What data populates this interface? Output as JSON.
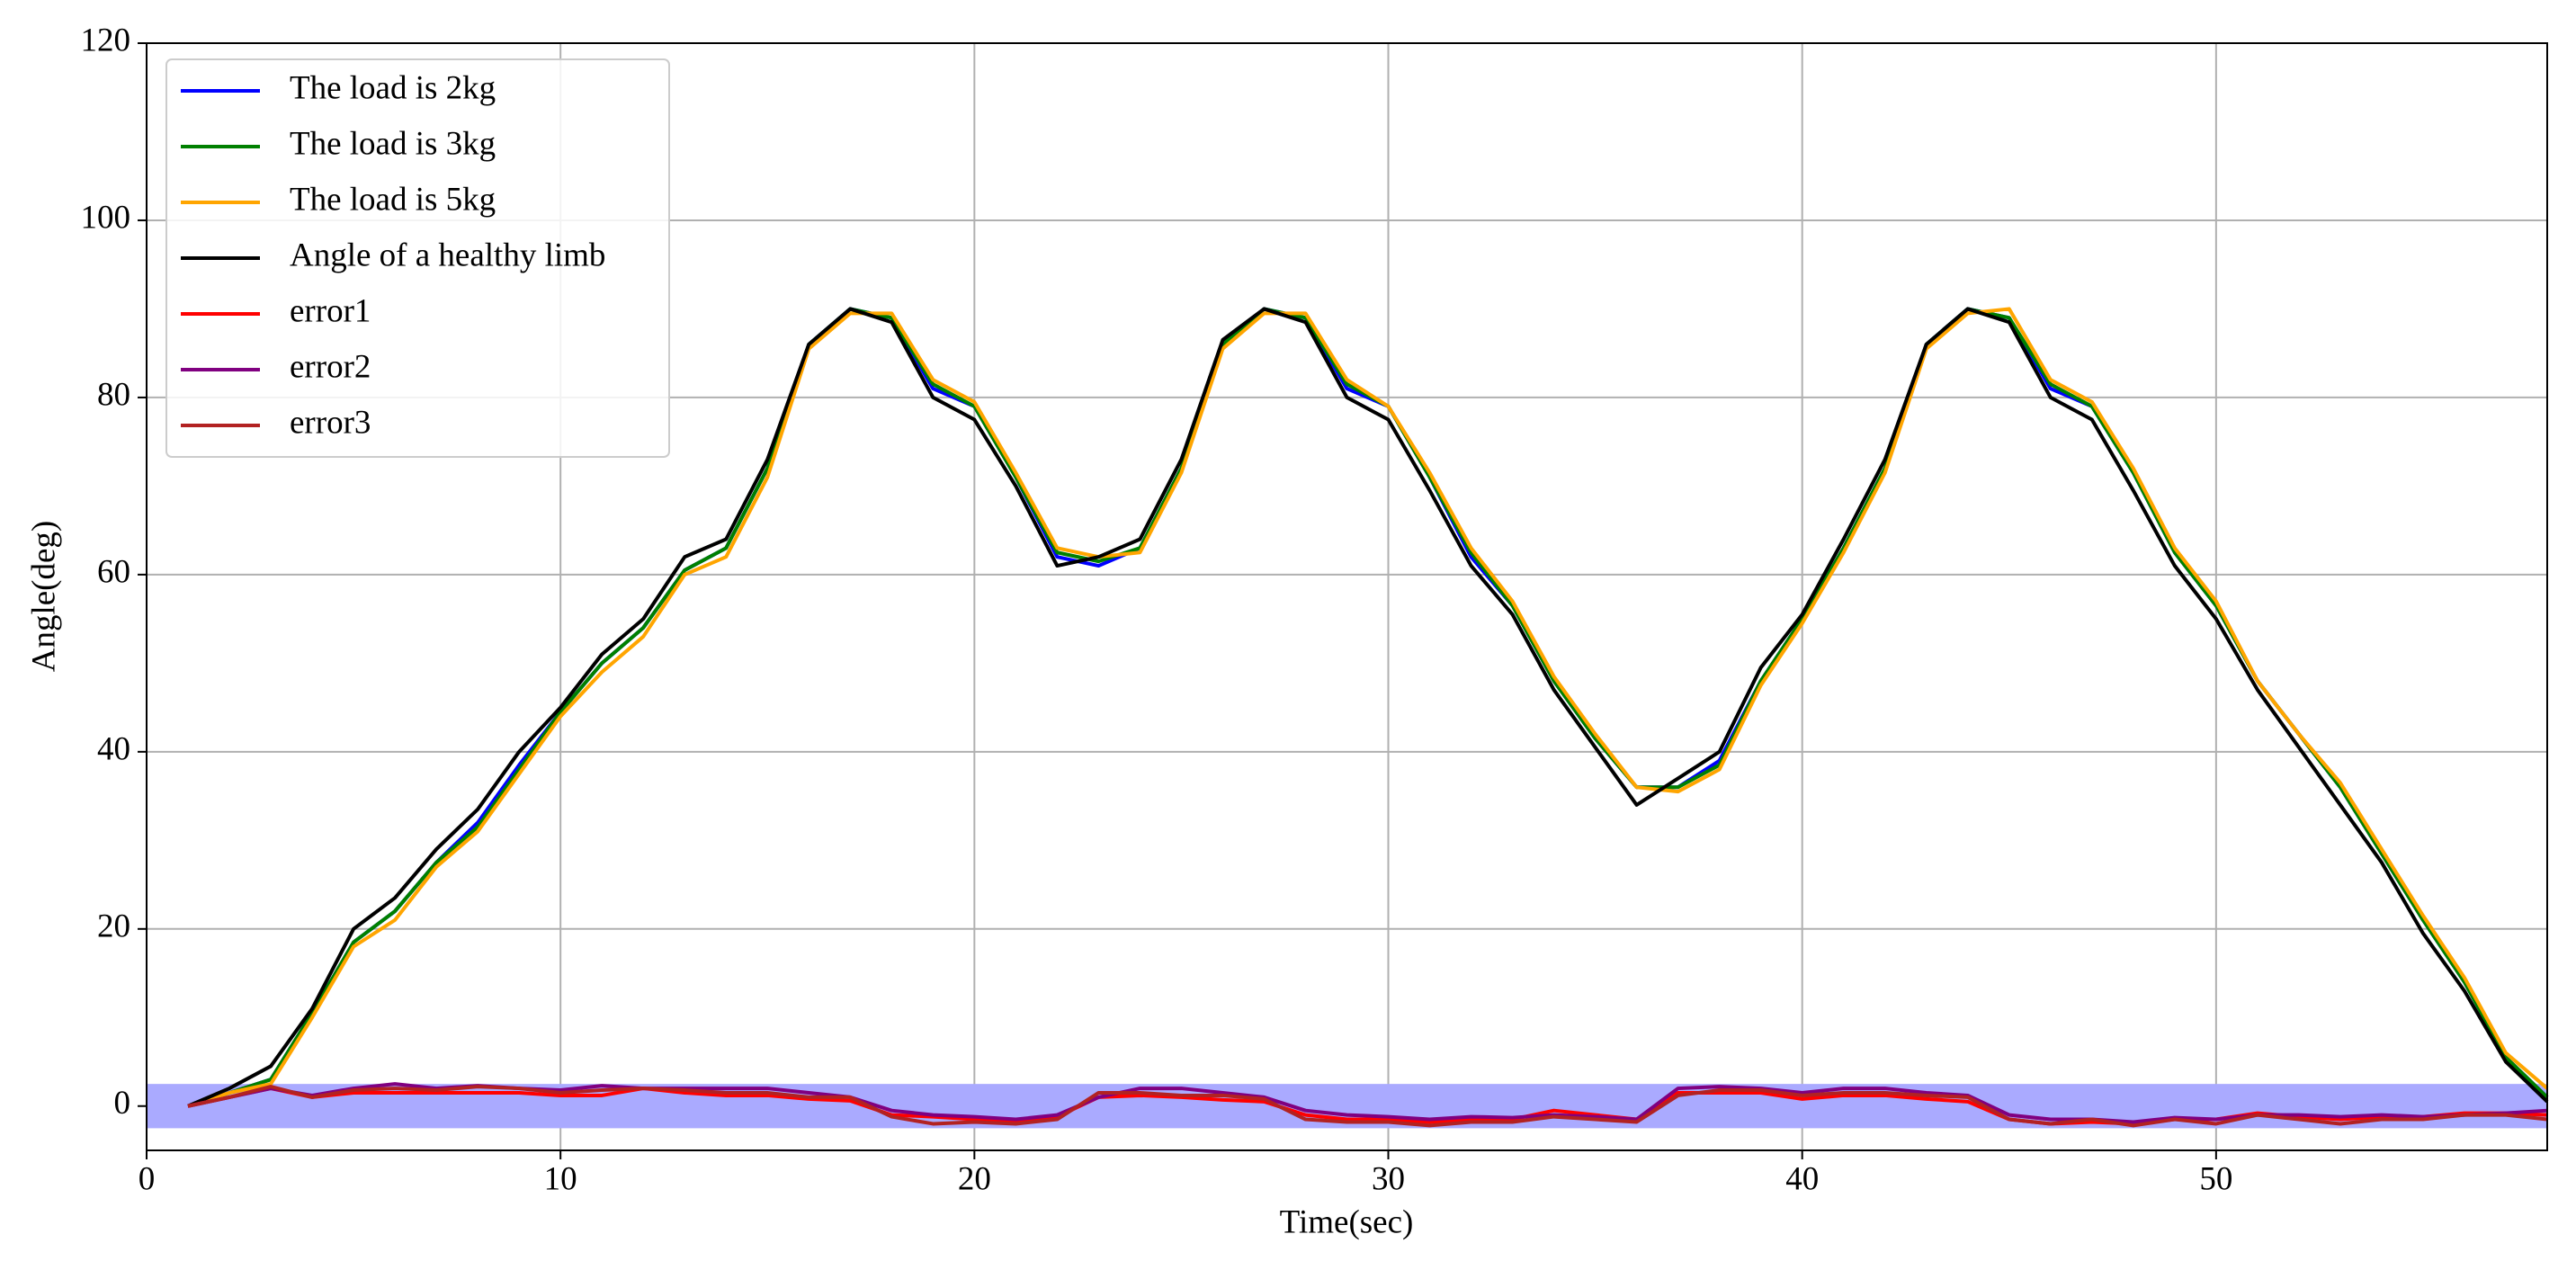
{
  "chart_data": {
    "type": "line",
    "x_label": "Time(sec)",
    "y_label": "Angle(deg)",
    "x": [
      1,
      2,
      3,
      4,
      5,
      6,
      7,
      8,
      9,
      10,
      11,
      12,
      13,
      14,
      15,
      16,
      17,
      18,
      19,
      20,
      21,
      22,
      23,
      24,
      25,
      26,
      27,
      28,
      29,
      30,
      31,
      32,
      33,
      34,
      35,
      36,
      37,
      38,
      39,
      40,
      41,
      42,
      43,
      44,
      45,
      46,
      47,
      48,
      49,
      50,
      51,
      52,
      53,
      54,
      55,
      56,
      57,
      58
    ],
    "series": [
      {
        "name": "The load is 2kg",
        "color": "#0000ff",
        "values": [
          0,
          1.5,
          3,
          10.5,
          18.5,
          22,
          27.5,
          32,
          38.5,
          44.5,
          50,
          54,
          60.5,
          63,
          72,
          86,
          90,
          89,
          81,
          79,
          71,
          62,
          61,
          63,
          72,
          86,
          90,
          89,
          81,
          79,
          71,
          62,
          56.5,
          48,
          41.5,
          36,
          36,
          39,
          48,
          55,
          63,
          72,
          86,
          90,
          89,
          81,
          79,
          71.5,
          62.5,
          56.5,
          48,
          42,
          36,
          28.5,
          21,
          14,
          5.5,
          1
        ]
      },
      {
        "name": "The load is 3kg",
        "color": "#008000",
        "values": [
          0,
          1.5,
          3,
          10.5,
          18.5,
          22,
          27.5,
          31.5,
          38,
          44.5,
          50,
          54,
          60.5,
          63,
          72,
          86,
          90,
          89,
          81.5,
          79,
          71,
          62.5,
          61.5,
          63,
          72,
          86,
          90,
          89,
          81.5,
          79,
          71,
          62.5,
          56.5,
          48,
          41.5,
          36,
          36,
          38.5,
          48,
          55,
          63,
          72,
          86,
          90,
          89,
          81.5,
          79,
          71.5,
          62.5,
          56.5,
          48,
          42,
          36,
          28.5,
          21,
          14,
          5.5,
          1
        ]
      },
      {
        "name": "The load is 5kg",
        "color": "#ffa500",
        "values": [
          0,
          1.5,
          2.5,
          10,
          18,
          21,
          27,
          31,
          37.5,
          44,
          49,
          53,
          60,
          62,
          71,
          85.5,
          89.5,
          89.5,
          82,
          79.5,
          71.5,
          63,
          62,
          62.5,
          71.5,
          85.5,
          89.5,
          89.5,
          82,
          79,
          71.5,
          63,
          57,
          48.5,
          42,
          36,
          35.5,
          38,
          47.5,
          54.5,
          62.5,
          71.5,
          85.5,
          89.5,
          90,
          82,
          79.5,
          72,
          63,
          57,
          48,
          42,
          36.5,
          29,
          21.5,
          14.5,
          6,
          2
        ]
      },
      {
        "name": "Angle of a healthy limb",
        "color": "#000000",
        "values": [
          0,
          2,
          4.5,
          11,
          20,
          23.5,
          29,
          33.5,
          40,
          45,
          51,
          55,
          62,
          64,
          73,
          86,
          90,
          88.5,
          80,
          77.5,
          70,
          61,
          62,
          64,
          73,
          86.5,
          90,
          88.5,
          80,
          77.5,
          69.5,
          61,
          55.5,
          47,
          40.5,
          34,
          37,
          40,
          49.5,
          55.5,
          64,
          73,
          86,
          90,
          88.5,
          80,
          77.5,
          69.5,
          61,
          55,
          47,
          40.5,
          34,
          27.5,
          19.5,
          13,
          5,
          0.5
        ]
      },
      {
        "name": "error1",
        "color": "#ff0000",
        "values": [
          0,
          1,
          2,
          1,
          1.5,
          1.5,
          1.5,
          1.5,
          1.5,
          1.2,
          1.2,
          2,
          1.5,
          1.2,
          1.2,
          0.8,
          0.6,
          -1,
          -1.2,
          -1.5,
          -1.8,
          -1.2,
          1,
          1.2,
          1,
          0.7,
          0.5,
          -1,
          -1.5,
          -1.5,
          -1.8,
          -1.5,
          -1.5,
          -0.5,
          -1,
          -1.5,
          1.5,
          1.5,
          1.5,
          0.8,
          1.2,
          1.2,
          0.8,
          0.5,
          -1.5,
          -2,
          -1.8,
          -2,
          -1.5,
          -1.5,
          -0.8,
          -1.2,
          -1.5,
          -1.2,
          -1.2,
          -0.8,
          -0.8,
          -1
        ]
      },
      {
        "name": "error2",
        "color": "#800080",
        "values": [
          0,
          1,
          2,
          1.2,
          2,
          2.5,
          2,
          2.3,
          2,
          1.8,
          2.3,
          2,
          2,
          2,
          2,
          1.5,
          1,
          -0.5,
          -1,
          -1.2,
          -1.5,
          -1,
          1,
          2,
          2,
          1.5,
          1,
          -0.5,
          -1,
          -1.2,
          -1.5,
          -1.2,
          -1.3,
          -1,
          -1.2,
          -1.5,
          2,
          2.2,
          2,
          1.5,
          2,
          2,
          1.5,
          1.2,
          -1,
          -1.5,
          -1.5,
          -1.8,
          -1.3,
          -1.5,
          -1,
          -1,
          -1.2,
          -1,
          -1.2,
          -1,
          -0.8,
          -0.5
        ]
      },
      {
        "name": "error3",
        "color": "#b22222",
        "values": [
          0,
          1,
          2.2,
          1,
          1.8,
          2,
          1.8,
          2.2,
          2,
          1.5,
          1.8,
          2,
          1.8,
          1.5,
          1.5,
          1,
          1,
          -1.2,
          -2,
          -1.8,
          -2,
          -1.5,
          1.5,
          1.5,
          1.2,
          1.2,
          0.8,
          -1.5,
          -1.8,
          -1.8,
          -2.2,
          -1.8,
          -1.8,
          -1.2,
          -1.5,
          -1.8,
          1.2,
          1.8,
          1.8,
          1.2,
          1.5,
          1.5,
          1.2,
          1,
          -1.5,
          -2,
          -1.5,
          -2.2,
          -1.5,
          -2,
          -1,
          -1.5,
          -2,
          -1.5,
          -1.5,
          -1,
          -1,
          -1.5
        ]
      }
    ],
    "band": [
      -2.5,
      2.5
    ],
    "band_color": "#aaaaff",
    "xlim": [
      0,
      58
    ],
    "xticks": [
      0,
      10,
      20,
      30,
      40,
      50
    ],
    "ylim": [
      -5,
      120
    ],
    "yticks": [
      0,
      20,
      40,
      60,
      80,
      100,
      120
    ],
    "grid": true,
    "legend": "upper left"
  }
}
